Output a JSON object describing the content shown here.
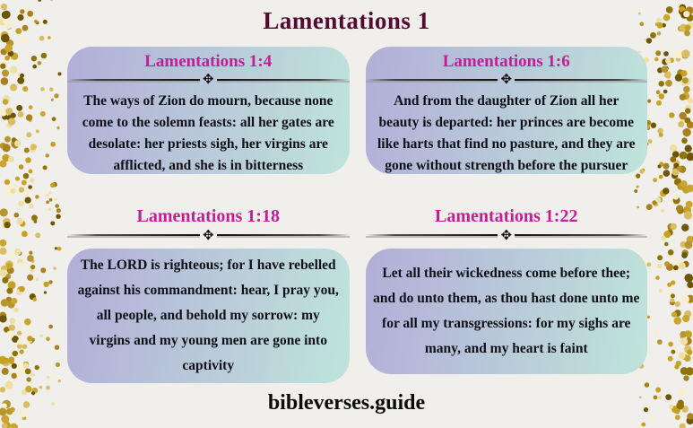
{
  "page": {
    "title": "Lamentations 1",
    "footer": "bibleverses.guide",
    "divider_ornament": "✥"
  },
  "colors": {
    "background": "#f0efec",
    "title": "#530b30",
    "verse_ref": "#c21e96",
    "card_gradient_start": "#b2aed8",
    "card_gradient_end": "#bfe4da",
    "gold_dot": "#b8962e"
  },
  "verses": [
    {
      "reference": "Lamentations 1:4",
      "text": "The ways of Zion do mourn, because none come to the solemn feasts: all her gates are desolate: her priests sigh, her virgins are afflicted, and she is in bitterness"
    },
    {
      "reference": "Lamentations 1:6",
      "text": "And from the daughter of Zion all her beauty is departed: her princes are become like harts that find no pasture, and they are gone without strength before the pursuer"
    },
    {
      "reference": "Lamentations 1:18",
      "text": "The LORD is righteous; for I have rebelled against his commandment: hear, I pray you, all people, and behold my sorrow: my virgins and my young men are gone into captivity"
    },
    {
      "reference": "Lamentations 1:22",
      "text": "Let all their wickedness come before thee; and do unto them, as thou hast done unto me for all my transgressions: for my sighs are many, and my heart is faint"
    }
  ]
}
